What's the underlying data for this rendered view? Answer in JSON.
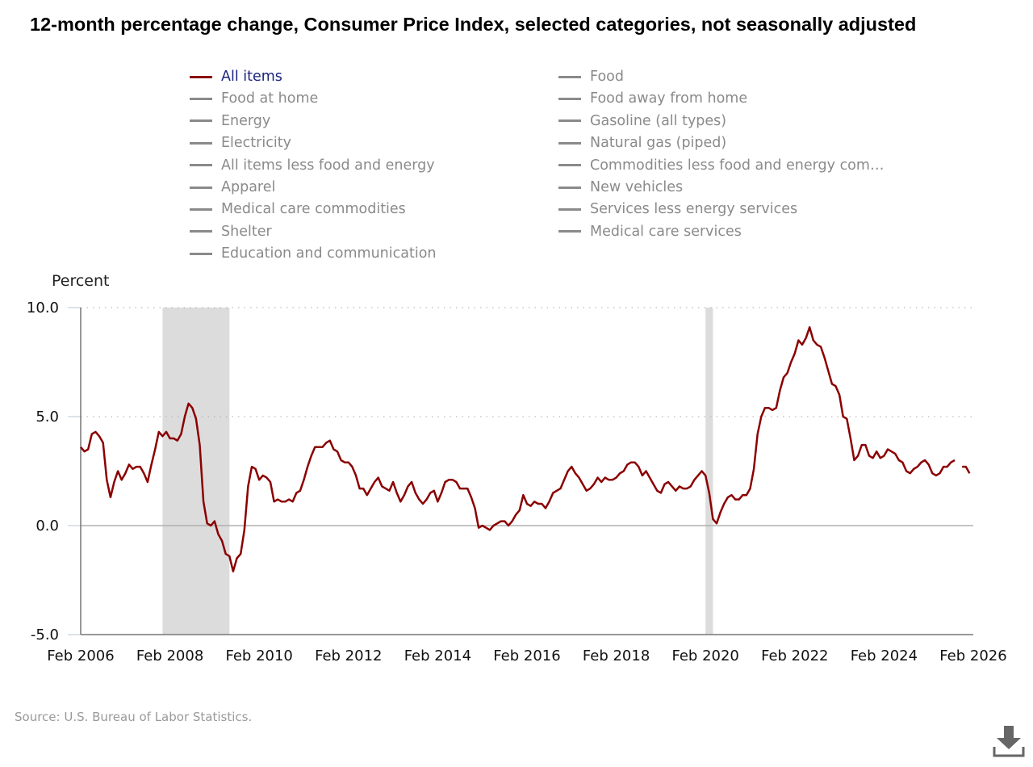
{
  "title": "12-month percentage change, Consumer Price Index, selected categories, not seasonally adjusted",
  "legend": [
    {
      "label": "All items",
      "active": true
    },
    {
      "label": "Food",
      "active": false
    },
    {
      "label": "Food at home",
      "active": false
    },
    {
      "label": "Food away from home",
      "active": false
    },
    {
      "label": "Energy",
      "active": false
    },
    {
      "label": "Gasoline (all types)",
      "active": false
    },
    {
      "label": "Electricity",
      "active": false
    },
    {
      "label": "Natural gas (piped)",
      "active": false
    },
    {
      "label": "All items less food and energy",
      "active": false
    },
    {
      "label": "Commodities less food and energy com…",
      "active": false
    },
    {
      "label": "Apparel",
      "active": false
    },
    {
      "label": "New vehicles",
      "active": false
    },
    {
      "label": "Medical care commodities",
      "active": false
    },
    {
      "label": "Services less energy services",
      "active": false
    },
    {
      "label": "Shelter",
      "active": false
    },
    {
      "label": "Medical care services",
      "active": false
    },
    {
      "label": "Education and communication",
      "active": false
    }
  ],
  "source": "Source: U.S. Bureau of Labor Statistics.",
  "download_icon": "download-icon",
  "chart_data": {
    "type": "line",
    "title": "12-month percentage change, Consumer Price Index, selected categories, not seasonally adjusted",
    "ylabel": "Percent",
    "xlabel": "",
    "ylim": [
      -5,
      10
    ],
    "yticks": [
      "10.0",
      "5.0",
      "0.0",
      "-5.0"
    ],
    "xlim": [
      "Feb 2006",
      "Feb 2026"
    ],
    "xticks": [
      "Feb 2006",
      "Feb 2008",
      "Feb 2010",
      "Feb 2012",
      "Feb 2014",
      "Feb 2016",
      "Feb 2018",
      "Feb 2020",
      "Feb 2022",
      "Feb 2024",
      "Feb 2026"
    ],
    "grid": "horizontal dotted",
    "series_color": "#8b0000",
    "recession_shading_color": "#dcdcdc",
    "recessions": [
      [
        "Dec 2007",
        "Jun 2009"
      ],
      [
        "Feb 2020",
        "Apr 2020"
      ]
    ],
    "series": [
      {
        "name": "All items",
        "start": "Feb 2006",
        "frequency": "monthly",
        "values": [
          3.6,
          3.4,
          3.5,
          4.2,
          4.3,
          4.1,
          3.8,
          2.1,
          1.3,
          2.0,
          2.5,
          2.1,
          2.4,
          2.8,
          2.6,
          2.7,
          2.7,
          2.4,
          2.0,
          2.8,
          3.5,
          4.3,
          4.1,
          4.3,
          4.0,
          4.0,
          3.9,
          4.2,
          5.0,
          5.6,
          5.4,
          4.9,
          3.7,
          1.1,
          0.1,
          0.0,
          0.2,
          -0.4,
          -0.7,
          -1.3,
          -1.4,
          -2.1,
          -1.5,
          -1.3,
          -0.2,
          1.8,
          2.7,
          2.6,
          2.1,
          2.3,
          2.2,
          2.0,
          1.1,
          1.2,
          1.1,
          1.1,
          1.2,
          1.1,
          1.5,
          1.6,
          2.1,
          2.7,
          3.2,
          3.6,
          3.6,
          3.6,
          3.8,
          3.9,
          3.5,
          3.4,
          3.0,
          2.9,
          2.9,
          2.7,
          2.3,
          1.7,
          1.7,
          1.4,
          1.7,
          2.0,
          2.2,
          1.8,
          1.7,
          1.6,
          2.0,
          1.5,
          1.1,
          1.4,
          1.8,
          2.0,
          1.5,
          1.2,
          1.0,
          1.2,
          1.5,
          1.6,
          1.1,
          1.5,
          2.0,
          2.1,
          2.1,
          2.0,
          1.7,
          1.7,
          1.7,
          1.3,
          0.8,
          -0.1,
          0.0,
          -0.1,
          -0.2,
          0.0,
          0.1,
          0.2,
          0.2,
          0.0,
          0.2,
          0.5,
          0.7,
          1.4,
          1.0,
          0.9,
          1.1,
          1.0,
          1.0,
          0.8,
          1.1,
          1.5,
          1.6,
          1.7,
          2.1,
          2.5,
          2.7,
          2.4,
          2.2,
          1.9,
          1.6,
          1.7,
          1.9,
          2.2,
          2.0,
          2.2,
          2.1,
          2.1,
          2.2,
          2.4,
          2.5,
          2.8,
          2.9,
          2.9,
          2.7,
          2.3,
          2.5,
          2.2,
          1.9,
          1.6,
          1.5,
          1.9,
          2.0,
          1.8,
          1.6,
          1.8,
          1.7,
          1.7,
          1.8,
          2.1,
          2.3,
          2.5,
          2.3,
          1.5,
          0.3,
          0.1,
          0.6,
          1.0,
          1.3,
          1.4,
          1.2,
          1.2,
          1.4,
          1.4,
          1.7,
          2.6,
          4.2,
          5.0,
          5.4,
          5.4,
          5.3,
          5.4,
          6.2,
          6.8,
          7.0,
          7.5,
          7.9,
          8.5,
          8.3,
          8.6,
          9.1,
          8.5,
          8.3,
          8.2,
          7.7,
          7.1,
          6.5,
          6.4,
          6.0,
          5.0,
          4.9,
          4.0,
          3.0,
          3.2,
          3.7,
          3.7,
          3.2,
          3.1,
          3.4,
          3.1,
          3.2,
          3.5,
          3.4,
          3.3,
          3.0,
          2.9,
          2.5,
          2.4,
          2.6,
          2.7,
          2.9,
          3.0,
          2.8,
          2.4,
          2.3,
          2.4,
          2.7,
          2.7,
          2.9,
          3.0,
          null,
          2.7,
          2.7,
          2.4
        ]
      }
    ]
  }
}
